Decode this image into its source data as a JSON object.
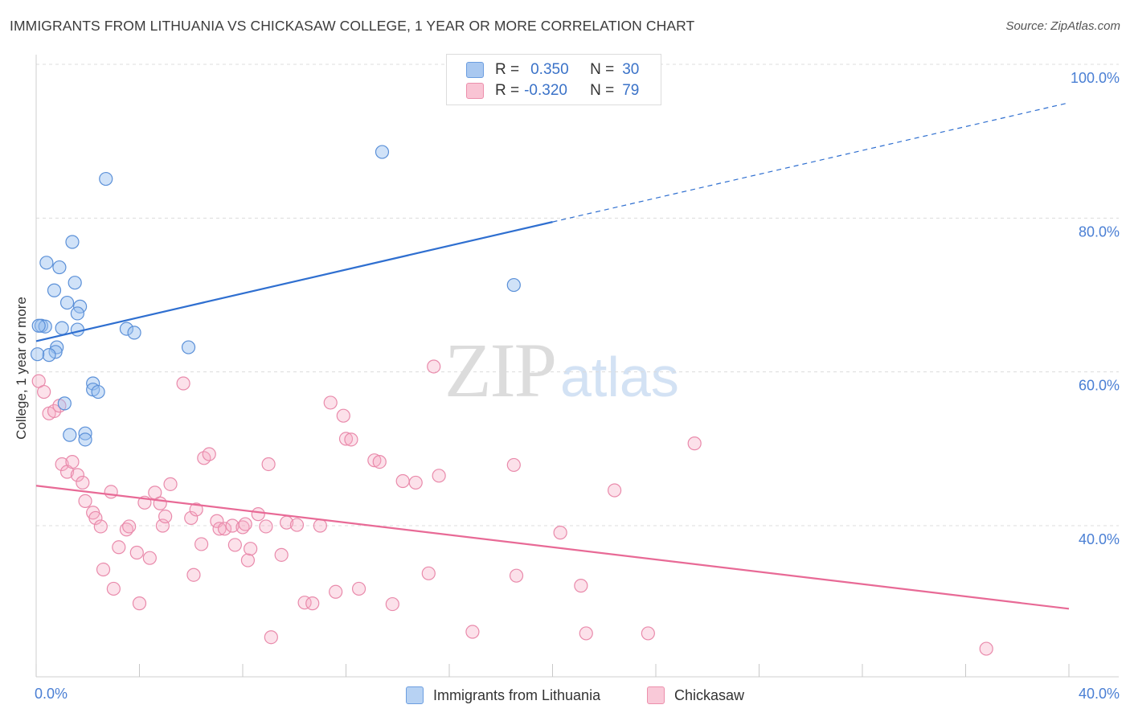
{
  "title": "IMMIGRANTS FROM LITHUANIA VS CHICKASAW COLLEGE, 1 YEAR OR MORE CORRELATION CHART",
  "source": "Source: ZipAtlas.com",
  "watermark": {
    "zip": "ZIP",
    "atlas": "atlas"
  },
  "legend": {
    "r_label": "R =",
    "n_label": "N =",
    "rows": [
      {
        "r": "0.350",
        "n": "30",
        "color": "#a9c8f0",
        "border": "#6c9ee0"
      },
      {
        "r": "-0.320",
        "n": "79",
        "color": "#f9c4d4",
        "border": "#ec8fac"
      }
    ]
  },
  "bottom_legend": [
    {
      "label": "Immigrants from Lithuania",
      "color": "#b7d2f3",
      "border": "#6c9ee0"
    },
    {
      "label": "Chickasaw",
      "color": "#f9c9d8",
      "border": "#ec8fac"
    }
  ],
  "colors": {
    "blue_point_fill": "rgba(150,190,240,0.45)",
    "blue_point_stroke": "#5b90d8",
    "pink_point_fill": "rgba(246,170,196,0.35)",
    "pink_point_stroke": "#e98aab",
    "blue_line": "#2f6fd0",
    "pink_line": "#e86a96",
    "grid": "#dcdcdc",
    "tick_text": "#4a7fd4"
  },
  "chart_data": {
    "type": "scatter",
    "title": "IMMIGRANTS FROM LITHUANIA VS CHICKASAW COLLEGE, 1 YEAR OR MORE CORRELATION CHART",
    "xlabel": "",
    "ylabel": "College, 1 year or more",
    "xlim": [
      0,
      40
    ],
    "ylim": [
      20,
      102
    ],
    "x_tick_labels": [
      "0.0%",
      "40.0%"
    ],
    "y_tick_labels": [
      "40.0%",
      "60.0%",
      "80.0%",
      "100.0%"
    ],
    "y_ticks": [
      40,
      60,
      80,
      100
    ],
    "grid": "horizontal dashed",
    "legend_position": "top-center",
    "series": [
      {
        "name": "Immigrants from Lithuania",
        "r": 0.35,
        "n": 30,
        "trend": {
          "x": [
            0,
            20
          ],
          "y": [
            64.0,
            79.5
          ]
        },
        "trend_dashed": {
          "x": [
            20,
            40
          ],
          "y": [
            79.5,
            95.0
          ]
        },
        "points": [
          [
            0.2,
            66.0
          ],
          [
            0.35,
            65.9
          ],
          [
            0.4,
            74.2
          ],
          [
            0.9,
            73.6
          ],
          [
            1.4,
            76.9
          ],
          [
            0.7,
            70.6
          ],
          [
            1.5,
            71.6
          ],
          [
            1.2,
            69.0
          ],
          [
            1.7,
            68.5
          ],
          [
            1.6,
            67.6
          ],
          [
            1.0,
            65.7
          ],
          [
            1.6,
            65.5
          ],
          [
            0.8,
            63.2
          ],
          [
            0.75,
            62.6
          ],
          [
            0.5,
            62.2
          ],
          [
            1.1,
            55.9
          ],
          [
            1.3,
            51.8
          ],
          [
            1.9,
            52.0
          ],
          [
            1.9,
            51.2
          ],
          [
            2.2,
            58.5
          ],
          [
            2.2,
            57.7
          ],
          [
            2.4,
            57.4
          ],
          [
            2.7,
            85.1
          ],
          [
            3.5,
            65.6
          ],
          [
            3.8,
            65.1
          ],
          [
            5.9,
            63.2
          ],
          [
            13.4,
            88.6
          ],
          [
            18.5,
            71.3
          ],
          [
            0.05,
            62.3
          ],
          [
            0.1,
            66.0
          ]
        ]
      },
      {
        "name": "Chickasaw",
        "r": -0.32,
        "n": 79,
        "trend": {
          "x": [
            0,
            40
          ],
          "y": [
            45.2,
            29.2
          ]
        },
        "points": [
          [
            0.1,
            58.8
          ],
          [
            0.3,
            57.4
          ],
          [
            0.5,
            54.6
          ],
          [
            0.7,
            54.9
          ],
          [
            0.9,
            55.6
          ],
          [
            1.0,
            48.0
          ],
          [
            1.2,
            47.0
          ],
          [
            1.4,
            48.3
          ],
          [
            1.6,
            46.6
          ],
          [
            1.8,
            45.6
          ],
          [
            1.9,
            43.2
          ],
          [
            2.2,
            41.7
          ],
          [
            2.3,
            41.0
          ],
          [
            2.5,
            39.9
          ],
          [
            2.6,
            34.3
          ],
          [
            2.9,
            44.4
          ],
          [
            3.0,
            31.8
          ],
          [
            3.2,
            37.2
          ],
          [
            3.5,
            39.5
          ],
          [
            3.6,
            39.9
          ],
          [
            3.9,
            36.5
          ],
          [
            4.0,
            29.9
          ],
          [
            4.2,
            43.0
          ],
          [
            4.4,
            35.8
          ],
          [
            4.6,
            44.3
          ],
          [
            4.8,
            42.9
          ],
          [
            4.9,
            40.0
          ],
          [
            5.0,
            41.2
          ],
          [
            5.2,
            45.4
          ],
          [
            5.7,
            58.5
          ],
          [
            6.0,
            41.0
          ],
          [
            6.1,
            33.6
          ],
          [
            6.2,
            42.1
          ],
          [
            6.4,
            37.6
          ],
          [
            6.5,
            48.8
          ],
          [
            6.7,
            49.3
          ],
          [
            7.0,
            40.6
          ],
          [
            7.1,
            39.6
          ],
          [
            7.3,
            39.6
          ],
          [
            7.6,
            40.0
          ],
          [
            7.7,
            37.5
          ],
          [
            8.0,
            39.8
          ],
          [
            8.1,
            40.2
          ],
          [
            8.2,
            35.5
          ],
          [
            8.3,
            37.0
          ],
          [
            8.6,
            41.5
          ],
          [
            8.9,
            39.9
          ],
          [
            9.0,
            48.0
          ],
          [
            9.1,
            25.5
          ],
          [
            9.5,
            36.2
          ],
          [
            9.7,
            40.4
          ],
          [
            10.1,
            40.1
          ],
          [
            10.4,
            30.0
          ],
          [
            10.7,
            29.9
          ],
          [
            11.0,
            40.0
          ],
          [
            11.4,
            56.0
          ],
          [
            11.6,
            31.4
          ],
          [
            11.9,
            54.3
          ],
          [
            12.0,
            51.3
          ],
          [
            12.2,
            51.2
          ],
          [
            12.5,
            31.8
          ],
          [
            13.1,
            48.5
          ],
          [
            13.3,
            48.3
          ],
          [
            13.8,
            29.8
          ],
          [
            14.2,
            45.8
          ],
          [
            14.7,
            45.6
          ],
          [
            15.2,
            33.8
          ],
          [
            15.4,
            60.7
          ],
          [
            15.6,
            46.5
          ],
          [
            16.9,
            26.2
          ],
          [
            18.5,
            47.9
          ],
          [
            18.6,
            33.5
          ],
          [
            20.3,
            39.1
          ],
          [
            21.1,
            32.2
          ],
          [
            21.3,
            26.0
          ],
          [
            22.4,
            44.6
          ],
          [
            23.7,
            26.0
          ],
          [
            25.5,
            50.7
          ],
          [
            36.8,
            24.0
          ]
        ]
      }
    ]
  }
}
